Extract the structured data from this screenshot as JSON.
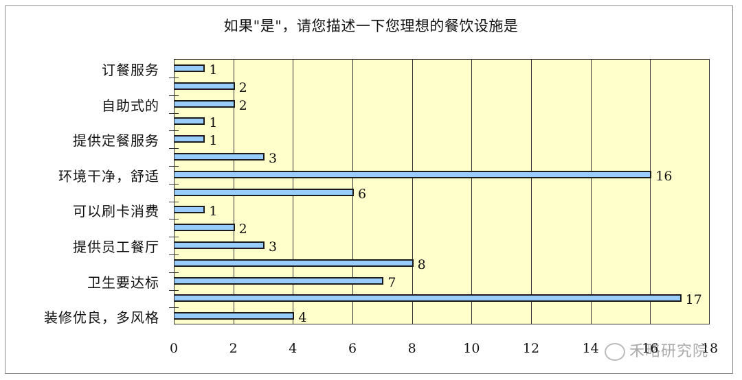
{
  "chart_data": {
    "type": "bar",
    "orientation": "horizontal",
    "title": "如果\"是\"，请您描述一下您理想的餐饮设施是",
    "categories": [
      "订餐服务",
      "",
      "自助式的",
      "",
      "提供定餐服务",
      "",
      "环境干净，舒适",
      "",
      "可以刷卡消费",
      "",
      "提供员工餐厅",
      "",
      "卫生要达标",
      "",
      "装修优良，多风格"
    ],
    "values": [
      1,
      2,
      2,
      1,
      1,
      3,
      16,
      6,
      1,
      2,
      3,
      8,
      7,
      17,
      4
    ],
    "xlabel": "",
    "ylabel": "",
    "xlim": [
      0,
      18
    ],
    "xticks": [
      "0",
      "2",
      "4",
      "6",
      "8",
      "10",
      "12",
      "14",
      "16",
      "18"
    ],
    "grid": true,
    "data_labels": true,
    "colors": {
      "bar_fill": "#99ccff",
      "bar_border": "#1a1a1a",
      "plot_bg": "#ffffcc"
    }
  },
  "watermark": "禾略研究院"
}
